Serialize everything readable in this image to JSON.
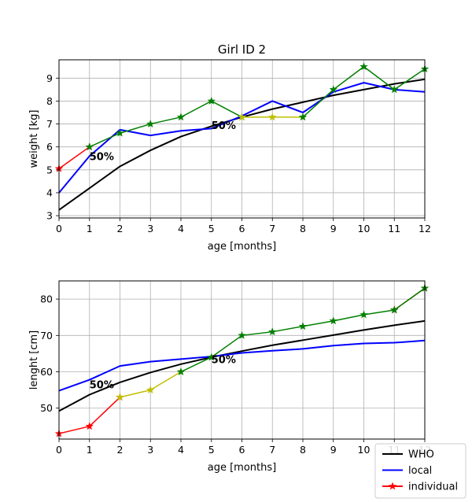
{
  "figure": {
    "title": "Girl ID 2"
  },
  "legend": {
    "placement": "bottom-right",
    "entries": [
      {
        "label": "WHO",
        "color": "#000000",
        "marker": "none"
      },
      {
        "label": "local",
        "color": "#0000ff",
        "marker": "none"
      },
      {
        "label": "individual",
        "color": "#ff0000",
        "marker": "star"
      }
    ]
  },
  "chart_data": [
    {
      "type": "line",
      "title": "Girl ID 2",
      "xlabel": "age [months]",
      "ylabel": "weight [kg]",
      "xlim": [
        0,
        12
      ],
      "ylim": [
        2.9,
        9.8
      ],
      "xticks": [
        0,
        1,
        2,
        3,
        4,
        5,
        6,
        7,
        8,
        9,
        10,
        11,
        12
      ],
      "yticks": [
        3,
        4,
        5,
        6,
        7,
        8,
        9
      ],
      "grid": true,
      "annotations": [
        {
          "text": "50%",
          "x": 1,
          "y": 5.6
        },
        {
          "text": "50%",
          "x": 5,
          "y": 6.95
        }
      ],
      "series": [
        {
          "name": "WHO",
          "color": "#000000",
          "marker": "none",
          "x": [
            0,
            1,
            2,
            3,
            4,
            5,
            6,
            7,
            8,
            9,
            10,
            11,
            12
          ],
          "y": [
            3.25,
            4.2,
            5.15,
            5.85,
            6.45,
            6.9,
            7.3,
            7.65,
            7.95,
            8.25,
            8.5,
            8.75,
            8.95
          ]
        },
        {
          "name": "local",
          "color": "#0000ff",
          "marker": "none",
          "x": [
            0,
            1,
            2,
            3,
            4,
            5,
            6,
            7,
            8,
            9,
            10,
            11,
            12
          ],
          "y": [
            4.0,
            5.6,
            6.75,
            6.5,
            6.7,
            6.8,
            7.35,
            8.0,
            7.5,
            8.4,
            8.8,
            8.5,
            8.4
          ]
        },
        {
          "name": "individual",
          "color": "#ff0000",
          "marker": "star",
          "x": [
            0,
            1
          ],
          "y": [
            5.05,
            6.0
          ]
        },
        {
          "color": "#008000",
          "marker": "star",
          "x": [
            1,
            2,
            3,
            4,
            5,
            6
          ],
          "y": [
            6.0,
            6.6,
            7.0,
            7.3,
            8.0,
            7.3
          ]
        },
        {
          "color": "#bfbf00",
          "marker": "star",
          "x": [
            6,
            7,
            8
          ],
          "y": [
            7.3,
            7.3,
            7.3
          ]
        },
        {
          "color": "#008000",
          "marker": "star",
          "x": [
            8,
            9,
            10,
            11,
            12
          ],
          "y": [
            7.3,
            8.5,
            9.5,
            8.5,
            9.4
          ]
        }
      ]
    },
    {
      "type": "line",
      "xlabel": "age [months]",
      "ylabel": "lenght [cm]",
      "xlim": [
        0,
        12
      ],
      "ylim": [
        41.5,
        85
      ],
      "xticks": [
        0,
        1,
        2,
        3,
        4,
        5,
        6,
        7,
        8,
        9,
        10,
        11,
        12
      ],
      "yticks": [
        50,
        60,
        70,
        80
      ],
      "grid": true,
      "annotations": [
        {
          "text": "50%",
          "x": 1,
          "y": 56.5
        },
        {
          "text": "50%",
          "x": 5,
          "y": 63.5
        }
      ],
      "series": [
        {
          "name": "WHO",
          "color": "#000000",
          "marker": "none",
          "x": [
            0,
            1,
            2,
            3,
            4,
            5,
            6,
            7,
            8,
            9,
            10,
            11,
            12
          ],
          "y": [
            49.2,
            53.7,
            57.1,
            59.8,
            62.1,
            64.0,
            65.7,
            67.3,
            68.7,
            70.1,
            71.5,
            72.8,
            74.0
          ]
        },
        {
          "name": "local",
          "color": "#0000ff",
          "marker": "none",
          "x": [
            0,
            1,
            2,
            3,
            4,
            5,
            6,
            7,
            8,
            9,
            10,
            11,
            12
          ],
          "y": [
            54.8,
            57.8,
            61.6,
            62.8,
            63.5,
            64.2,
            65.2,
            65.8,
            66.3,
            67.2,
            67.8,
            68.0,
            68.6
          ]
        },
        {
          "name": "individual",
          "color": "#ff0000",
          "marker": "star",
          "x": [
            0,
            1,
            2
          ],
          "y": [
            43.0,
            45.0,
            53.0
          ]
        },
        {
          "color": "#bfbf00",
          "marker": "star",
          "x": [
            2,
            3,
            4
          ],
          "y": [
            53.0,
            55.0,
            60.0
          ]
        },
        {
          "color": "#008000",
          "marker": "star",
          "x": [
            4,
            5,
            6,
            7,
            8,
            9,
            10,
            11
          ],
          "y": [
            60.0,
            64.0,
            70.0,
            71.0,
            72.5,
            74.0,
            75.7,
            77.0
          ]
        },
        {
          "color": "#ff0000",
          "marker": "star",
          "x": [
            11,
            12
          ],
          "y": [
            77.0,
            83.0
          ]
        },
        {
          "color": "#008000",
          "marker": "star",
          "x": [
            11,
            12
          ],
          "y": [
            77.0,
            83.0
          ]
        }
      ]
    }
  ]
}
